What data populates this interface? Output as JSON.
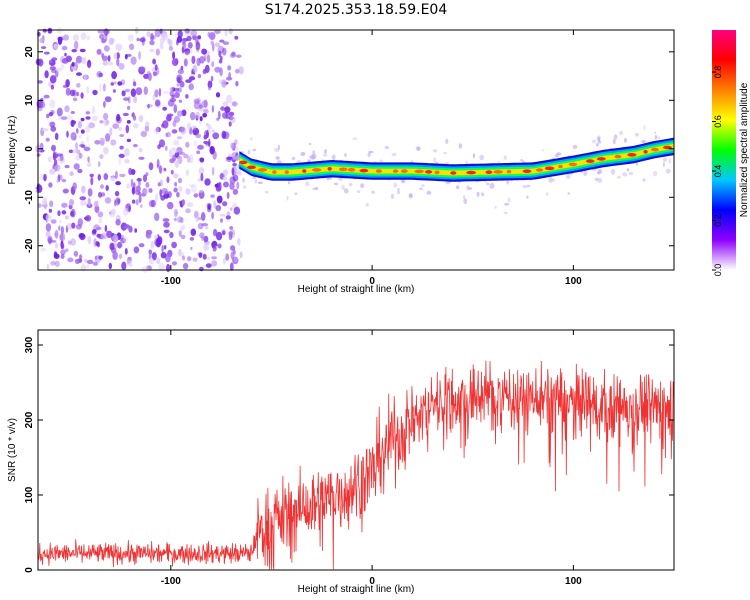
{
  "title": "S174.2025.353.18.59.E04",
  "chart_data": [
    {
      "type": "heatmap",
      "xlabel": "Height of straight line (km)",
      "ylabel": "Frequency (Hz)",
      "xlim": [
        -166,
        150
      ],
      "ylim": [
        -25,
        24.5
      ],
      "xticks": [
        -100,
        0,
        100
      ],
      "yticks": [
        -20,
        -10,
        0,
        10,
        20
      ],
      "colorbar": {
        "label": "Normalized spectral amplitude",
        "ticks": [
          "0.0",
          "0.2",
          "0.4",
          "0.6",
          "0.8"
        ],
        "tick_values": [
          0,
          0.2,
          0.4,
          0.6,
          0.8
        ],
        "range": [
          0,
          0.97
        ],
        "colors": [
          "#ffffff",
          "#8f00ff",
          "#0000ff",
          "#00c8ff",
          "#00ff00",
          "#ffff00",
          "#ff8000",
          "#ff0000",
          "#ff0080"
        ]
      },
      "noise_region_x": [
        -166,
        -65
      ],
      "ridge": {
        "x": [
          -66,
          -60,
          -50,
          -40,
          -20,
          0,
          20,
          40,
          60,
          80,
          100,
          115,
          130,
          140,
          150
        ],
        "freq": [
          -2.3,
          -3.8,
          -4.8,
          -4.8,
          -4.1,
          -4.6,
          -4.6,
          -5.0,
          -4.8,
          -4.6,
          -3.2,
          -2.0,
          -1.2,
          -0.2,
          0.5
        ]
      }
    },
    {
      "type": "line",
      "xlabel": "Height of straight line (km)",
      "ylabel": "SNR (10 * v/v)",
      "xlim": [
        -166,
        150
      ],
      "ylim": [
        0,
        320
      ],
      "xticks": [
        -100,
        0,
        100
      ],
      "yticks": [
        0,
        100,
        200,
        300
      ],
      "color": "#f03232",
      "trend": {
        "x": [
          -166,
          -60,
          -57,
          -45,
          -30,
          -10,
          0,
          5,
          15,
          30,
          60,
          90,
          120,
          150
        ],
        "y": [
          22,
          22,
          50,
          70,
          85,
          110,
          130,
          165,
          185,
          225,
          235,
          228,
          218,
          220
        ]
      }
    }
  ]
}
